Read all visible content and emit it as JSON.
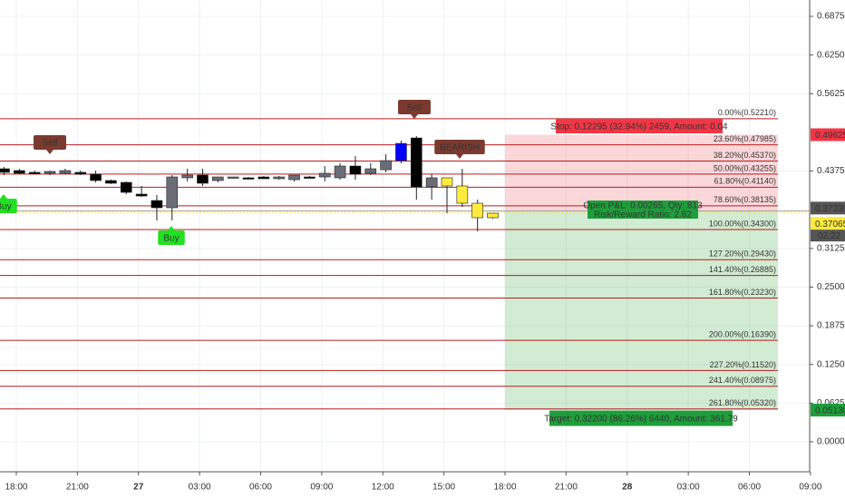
{
  "chart_data": {
    "type": "candlestick",
    "x": [
      -0.6,
      0.15,
      0.9,
      1.65,
      2.4,
      3.15,
      3.9,
      4.65,
      5.4,
      6.15,
      6.9,
      7.65,
      8.4,
      9.15,
      9.9,
      10.65,
      11.4,
      12.15,
      12.9,
      13.65,
      14.4,
      15.15,
      15.9,
      16.65,
      17.4,
      18.15,
      18.9,
      19.65,
      20.4,
      21.15,
      21.9,
      22.65,
      23.4
    ],
    "open": [
      0.4412,
      0.4383,
      0.4354,
      0.4339,
      0.4339,
      0.4354,
      0.4324,
      0.4222,
      0.4192,
      0.4002,
      0.3899,
      0.3782,
      0.4266,
      0.431,
      0.4222,
      0.4266,
      0.4266,
      0.428,
      0.4251,
      0.4236,
      0.428,
      0.428,
      0.4266,
      0.4456,
      0.4339,
      0.4397,
      0.4544,
      0.491,
      0.4119,
      0.4266,
      0.4134,
      0.3855,
      0.3621
    ],
    "high": [
      0.4441,
      0.4412,
      0.4383,
      0.4383,
      0.4412,
      0.4383,
      0.4383,
      0.4236,
      0.4207,
      0.4134,
      0.3987,
      0.431,
      0.4412,
      0.4412,
      0.428,
      0.428,
      0.428,
      0.4295,
      0.4295,
      0.431,
      0.4295,
      0.4456,
      0.45,
      0.4617,
      0.45,
      0.4647,
      0.4866,
      0.494,
      0.4324,
      0.4266,
      0.4412,
      0.3914,
      0.3694
    ],
    "low": [
      0.431,
      0.4324,
      0.4324,
      0.431,
      0.4324,
      0.431,
      0.4192,
      0.4166,
      0.4002,
      0.3958,
      0.3577,
      0.3577,
      0.4207,
      0.4134,
      0.4192,
      0.4251,
      0.4251,
      0.4251,
      0.4236,
      0.4207,
      0.4266,
      0.4207,
      0.4236,
      0.4236,
      0.431,
      0.4354,
      0.45,
      0.3914,
      0.3914,
      0.3694,
      0.3797,
      0.3401,
      0.3606
    ],
    "close": [
      0.4354,
      0.4339,
      0.4339,
      0.4368,
      0.4383,
      0.4324,
      0.4222,
      0.4178,
      0.4031,
      0.3972,
      0.3782,
      0.428,
      0.431,
      0.4178,
      0.428,
      0.428,
      0.4266,
      0.4251,
      0.428,
      0.431,
      0.428,
      0.4339,
      0.4456,
      0.4324,
      0.4412,
      0.4544,
      0.4822,
      0.4119,
      0.4266,
      0.4134,
      0.3855,
      0.3621,
      0.3694
    ],
    "colors": [
      "#000000",
      "#000000",
      "#000000",
      "#6a6d78",
      "#6a6d78",
      "#000000",
      "#000000",
      "#000000",
      "#000000",
      "#000000",
      "#000000",
      "#6a6d78",
      "#6a6d78",
      "#000000",
      "#6a6d78",
      "#6a6d78",
      "#000000",
      "#000000",
      "#6a6d78",
      "#6a6d78",
      "#000000",
      "#6a6d78",
      "#6a6d78",
      "#000000",
      "#6a6d78",
      "#6a6d78",
      "#0000ff",
      "#000000",
      "#6a6d78",
      "#ffeb3b",
      "#ffeb3b",
      "#ffeb3b",
      "#ffeb3b"
    ],
    "xlim": [
      -0.8,
      38.96
    ],
    "xticks": [
      {
        "value": 0,
        "label": "18:00"
      },
      {
        "value": 3,
        "label": "21:00"
      },
      {
        "value": 6,
        "label": "27"
      },
      {
        "value": 9,
        "label": "03:00"
      },
      {
        "value": 12,
        "label": "06:00"
      },
      {
        "value": 15,
        "label": "09:00"
      },
      {
        "value": 18,
        "label": "12:00"
      },
      {
        "value": 21,
        "label": "15:00"
      },
      {
        "value": 24,
        "label": "18:00"
      },
      {
        "value": 27,
        "label": "21:00"
      },
      {
        "value": 30,
        "label": "28"
      },
      {
        "value": 33,
        "label": "03:00"
      },
      {
        "value": 36,
        "label": "06:00"
      },
      {
        "value": 39,
        "label": "09:00"
      }
    ],
    "ylim": [
      -0.0484,
      0.7139
    ],
    "yticks": [
      {
        "value": 0.6875,
        "label": "0.68750"
      },
      {
        "value": 0.625,
        "label": "0.62500"
      },
      {
        "value": 0.5625,
        "label": "0.56250"
      },
      {
        "value": 0.4375,
        "label": "0.43750"
      },
      {
        "value": 0.3125,
        "label": "0.31250"
      },
      {
        "value": 0.25,
        "label": "0.25000"
      },
      {
        "value": 0.1875,
        "label": "0.18750"
      },
      {
        "value": 0.125,
        "label": "0.12500"
      },
      {
        "value": 0.0625,
        "label": "0.06250"
      },
      {
        "value": 0,
        "label": "0.00000"
      }
    ],
    "grid": true,
    "fib_levels": [
      {
        "label": "0.00%(0.52210)",
        "value": 0.5221
      },
      {
        "label": "23.60%(0.47985)",
        "value": 0.47985
      },
      {
        "label": "38.20%(0.45370)",
        "value": 0.4537
      },
      {
        "label": "50.00%(0.43255)",
        "value": 0.43255
      },
      {
        "label": "61.80%(0.41140)",
        "value": 0.4114
      },
      {
        "label": "78.60%(0.38135)",
        "value": 0.38135
      },
      {
        "label": "100.00%(0.34300)",
        "value": 0.343
      },
      {
        "label": "127.20%(0.29430)",
        "value": 0.2943
      },
      {
        "label": "141.40%(0.26885)",
        "value": 0.26885
      },
      {
        "label": "161.80%(0.23230)",
        "value": 0.2323
      },
      {
        "label": "200.00%(0.16390)",
        "value": 0.1639
      },
      {
        "label": "227.20%(0.11520)",
        "value": 0.1152
      },
      {
        "label": "241.40%(0.08975)",
        "value": 0.08975
      },
      {
        "label": "261.80%(0.05320)",
        "value": 0.0532
      }
    ],
    "position": {
      "stop": {
        "value": 0.49625,
        "label": "0.49625"
      },
      "entry": {
        "value": 0.3733,
        "label": "0.37330"
      },
      "target": {
        "value": 0.0513,
        "label": "0.05130"
      },
      "start": 24.0,
      "end": 37.4,
      "stop_text": "Stop: 0.12295 (32.94%) 2459, Amount: 0.04",
      "pnl_text": "Open P&L: 0.00265, Qty: 813",
      "ratio_text": "Risk/Reward Ratio: 2.62",
      "target_text": "Target: 0.32200 (86.26%) 6440, Amount: 361.79"
    },
    "last_price": {
      "value": 0.37065,
      "label": "0.37065"
    },
    "countdown": "02:22",
    "annotations": [
      {
        "text": "Sell"
      },
      {
        "text": "Sell"
      },
      {
        "text": "BEARISH"
      },
      {
        "text": "Buy"
      },
      {
        "text": "Buy"
      }
    ]
  }
}
